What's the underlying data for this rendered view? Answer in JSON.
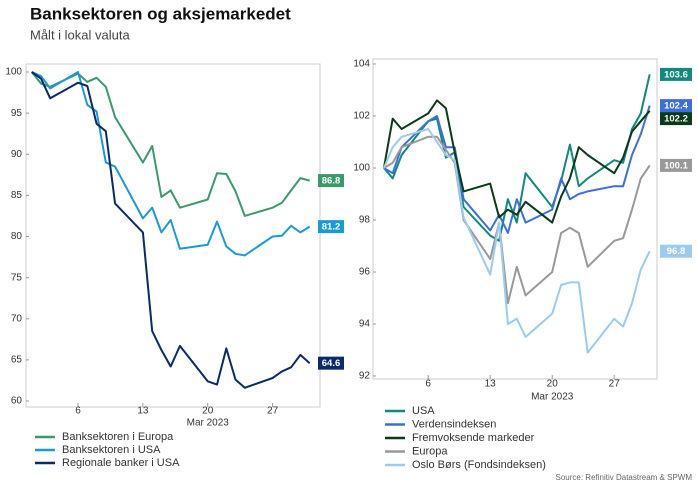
{
  "title": "Banksektoren og aksjemarkedet",
  "subtitle": "Målt i lokal valuta",
  "source": "Source: Refinitiv Datastream & SPWM",
  "chart_data": [
    {
      "type": "line",
      "xlabel": "Mar 2023",
      "x": [
        1,
        2,
        3,
        6,
        7,
        8,
        9,
        10,
        13,
        14,
        15,
        16,
        17,
        20,
        21,
        22,
        23,
        24,
        27,
        28,
        29,
        30,
        31
      ],
      "xlim": [
        0.6,
        31.9
      ],
      "xticks": [
        6,
        13,
        20,
        27
      ],
      "ylim": [
        60,
        100
      ],
      "yticks": [
        60,
        65,
        70,
        75,
        80,
        85,
        90,
        95,
        100
      ],
      "series": [
        {
          "name": "Banksektoren i Europa",
          "color": "#3a9a6a",
          "values": [
            100,
            98.6,
            98.2,
            99.8,
            98.8,
            99.3,
            98.2,
            94.5,
            89.0,
            91.0,
            84.8,
            85.6,
            83.5,
            84.5,
            87.7,
            87.6,
            85.5,
            82.5,
            83.5,
            84.1,
            85.6,
            87.1,
            86.8
          ]
        },
        {
          "name": "Banksektoren i USA",
          "color": "#1a9ad6",
          "values": [
            100,
            99.5,
            98.0,
            100,
            96.0,
            95.2,
            89.0,
            88.5,
            82.2,
            83.5,
            80.5,
            82.0,
            78.5,
            79.0,
            81.8,
            78.8,
            77.9,
            77.7,
            80.0,
            80.1,
            81.3,
            80.5,
            81.2
          ]
        },
        {
          "name": "Regionale banker i USA",
          "color": "#0b2a6b",
          "values": [
            100,
            99.2,
            96.8,
            98.7,
            98.3,
            93.7,
            92.8,
            84.0,
            80.5,
            68.5,
            66.2,
            64.2,
            66.7,
            62.4,
            62.0,
            66.4,
            62.6,
            61.6,
            62.8,
            63.6,
            64.1,
            65.6,
            64.6
          ]
        }
      ]
    },
    {
      "type": "line",
      "xlabel": "Mar 2023",
      "x": [
        1,
        2,
        3,
        6,
        7,
        8,
        9,
        10,
        13,
        14,
        15,
        16,
        17,
        20,
        21,
        22,
        23,
        24,
        27,
        28,
        29,
        30,
        31
      ],
      "xlim": [
        0,
        31.6
      ],
      "xticks": [
        6,
        13,
        20,
        27
      ],
      "ylim": [
        92,
        104
      ],
      "yticks": [
        92,
        94,
        96,
        98,
        100,
        102,
        104
      ],
      "series": [
        {
          "name": "USA",
          "color": "#0e8a7e",
          "values": [
            100,
            99.6,
            100.5,
            101.8,
            101.9,
            100.4,
            100.6,
            98.5,
            97.4,
            97.2,
            98.8,
            97.9,
            99.8,
            98.5,
            99.5,
            100.9,
            99.3,
            99.6,
            100.3,
            100.2,
            101.5,
            102.1,
            103.6
          ]
        },
        {
          "name": "Verdensindeksen",
          "color": "#3b6fe0",
          "values": [
            100,
            99.8,
            100.8,
            101.8,
            102.0,
            100.8,
            100.8,
            98.8,
            97.6,
            98.2,
            97.5,
            98.8,
            97.9,
            98.4,
            99.6,
            98.8,
            99.0,
            99.1,
            99.3,
            99.3,
            100.5,
            101.3,
            102.4
          ]
        },
        {
          "name": "Fremvoksende markeder",
          "color": "#0a3a18",
          "values": [
            100,
            101.9,
            101.5,
            102.1,
            102.6,
            102.3,
            100.6,
            99.1,
            99.4,
            98.1,
            98.4,
            98.2,
            98.7,
            97.9,
            98.9,
            99.6,
            100.8,
            100.5,
            99.8,
            100.4,
            101.4,
            101.8,
            102.2
          ]
        },
        {
          "name": "Europa",
          "color": "#999999",
          "values": [
            100,
            100.2,
            100.8,
            101.2,
            101.2,
            100.7,
            100.2,
            98.0,
            96.5,
            97.9,
            94.8,
            96.2,
            95.1,
            96.0,
            97.5,
            97.7,
            97.5,
            96.2,
            97.2,
            97.3,
            98.4,
            99.6,
            100.1
          ]
        },
        {
          "name": "Oslo Børs (Fondsindeksen)",
          "color": "#9ccbef",
          "values": [
            100,
            100.8,
            101.2,
            101.5,
            101.0,
            100.5,
            100.3,
            98.1,
            95.9,
            97.9,
            94.0,
            94.2,
            93.5,
            94.4,
            95.5,
            95.6,
            95.6,
            92.9,
            94.2,
            93.9,
            94.8,
            96.1,
            96.8
          ]
        }
      ]
    }
  ]
}
